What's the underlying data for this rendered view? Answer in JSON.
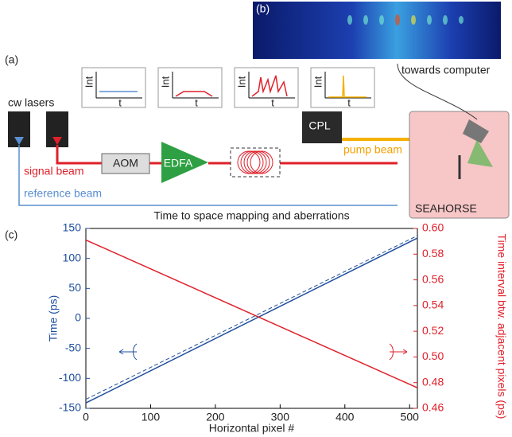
{
  "panels": {
    "a": "(a)",
    "b": "(b)",
    "c": "(c)"
  },
  "diagram": {
    "lasers": "cw lasers",
    "aom": "AOM",
    "edfa": "EDFA",
    "cpl": "CPL",
    "signal": "signal beam",
    "pump": "pump beam",
    "reference": "reference beam",
    "seahorse": "SEAHORSE",
    "computer": "towards computer",
    "insets": [
      {
        "ylabel": "Int",
        "xlabel": "t"
      },
      {
        "ylabel": "Int",
        "xlabel": "t"
      },
      {
        "ylabel": "Int",
        "xlabel": "t"
      },
      {
        "ylabel": "Int",
        "xlabel": "t"
      }
    ]
  },
  "chart_data": {
    "type": "line",
    "title": "Time to space mapping and aberrations",
    "xlabel": "Horizontal pixel #",
    "ylabel": "Time (ps)",
    "y2label": "Time interval btw. adjacent pixels (ps)",
    "x": [
      0,
      512
    ],
    "series": [
      {
        "color": "#1f4e9c",
        "style": "solid",
        "values": [
          -141,
          134
        ]
      },
      {
        "color": "#1f4e9c",
        "style": "dashed",
        "values": [
          -135,
          138
        ]
      },
      {
        "color": "#e0202a",
        "style": "solid",
        "axis": "y2",
        "values": [
          0.591,
          0.476
        ]
      }
    ],
    "xlim": [
      0,
      512
    ],
    "xticks": [
      0,
      100,
      200,
      300,
      400,
      500
    ],
    "ylim": [
      -150,
      150
    ],
    "yticks": [
      -150,
      -100,
      -50,
      0,
      50,
      100,
      150
    ],
    "y2lim": [
      0.46,
      0.6
    ],
    "y2ticks": [
      0.46,
      0.48,
      {
        "value": 0.5,
        "label": "0.50"
      },
      0.52,
      0.54,
      0.56,
      0.58,
      {
        "value": 0.6,
        "label": "0.60"
      }
    ],
    "ycolor": "#1f4e9c",
    "y2color": "#e0202a"
  }
}
